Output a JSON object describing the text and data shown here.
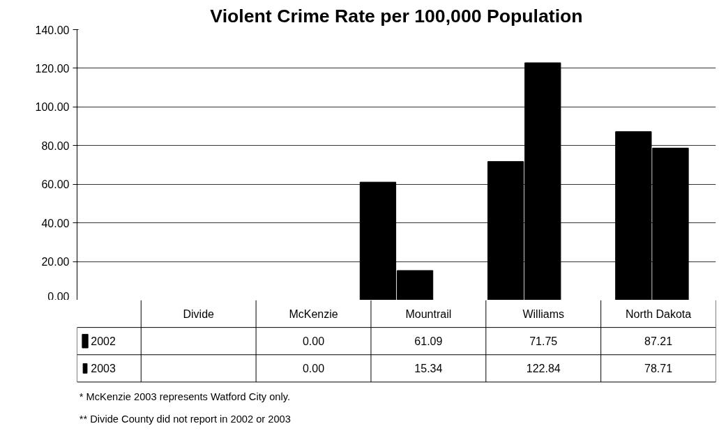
{
  "chart_data": {
    "type": "bar",
    "title": "Violent Crime Rate per 100,000 Population",
    "categories": [
      "Divide",
      "McKenzie",
      "Mountrail",
      "Williams",
      "North Dakota"
    ],
    "series": [
      {
        "name": "2002",
        "color": "#000000",
        "values": [
          null,
          0,
          61.09,
          71.75,
          87.21
        ],
        "value_labels": [
          null,
          "0.00",
          "61.09",
          "71.75",
          "87.21"
        ]
      },
      {
        "name": "2003",
        "color": "#000000",
        "values": [
          null,
          0,
          15.34,
          122.84,
          78.71
        ],
        "value_labels": [
          null,
          "0.00",
          "15.34",
          "122.84",
          "78.71"
        ]
      }
    ],
    "ylim": [
      0,
      140
    ],
    "yticks": [
      {
        "value": 0,
        "label": "0.00"
      },
      {
        "value": 20,
        "label": "20.00"
      },
      {
        "value": 40,
        "label": "40.00"
      },
      {
        "value": 60,
        "label": "60.00"
      },
      {
        "value": 80,
        "label": "80.00"
      },
      {
        "value": 100,
        "label": "100.00"
      },
      {
        "value": 120,
        "label": "120.00"
      },
      {
        "value": 140,
        "label": "140.00"
      }
    ],
    "grid": "y",
    "legend": "bottom",
    "annotations": [
      "*   McKenzie 2003 represents Watford City only.",
      "** Divide County did not report in 2002 or 2003"
    ]
  }
}
